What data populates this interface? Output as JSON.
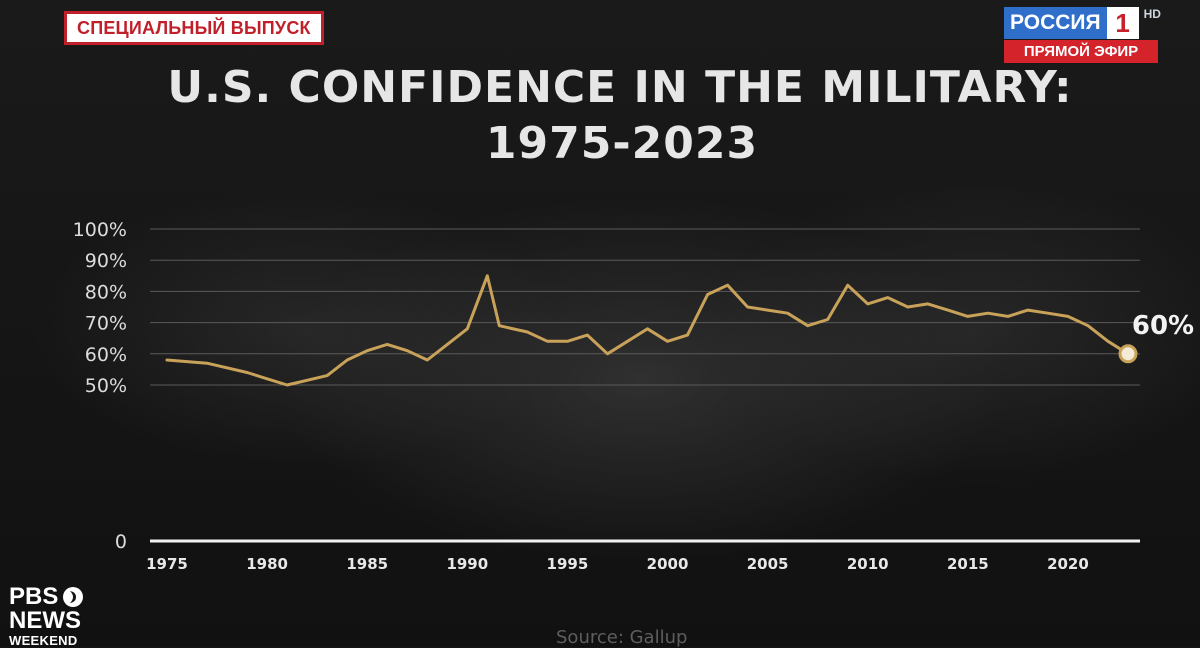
{
  "banner": {
    "special_edition": "СПЕЦИАЛЬНЫЙ ВЫПУСК"
  },
  "channel": {
    "name": "РОССИЯ",
    "number": "1",
    "hd": "HD",
    "live": "ПРЯМОЙ ЭФИР"
  },
  "broadcaster": {
    "line1": "PBS",
    "line2": "NEWS",
    "line3": "WEEKEND"
  },
  "source": "Source: Gallup",
  "colors": {
    "line": "#c9a25a",
    "text": "#e6e6e6",
    "grid": "#5a5a5a",
    "badge_red": "#c0202a",
    "channel_blue": "#2f6fc9"
  },
  "chart_data": {
    "type": "line",
    "title": [
      "U.S. CONFIDENCE IN THE MILITARY:",
      "1975-2023"
    ],
    "xlabel": "",
    "ylabel": "",
    "xlim": [
      1975,
      2023
    ],
    "ylim": [
      0,
      100
    ],
    "x_ticks": [
      1975,
      1980,
      1985,
      1990,
      1995,
      2000,
      2005,
      2010,
      2015,
      2020
    ],
    "y_ticks": [
      {
        "value": 0,
        "label": "0"
      },
      {
        "value": 50,
        "label": "50%"
      },
      {
        "value": 60,
        "label": "60%"
      },
      {
        "value": 70,
        "label": "70%"
      },
      {
        "value": 80,
        "label": "80%"
      },
      {
        "value": 90,
        "label": "90%"
      },
      {
        "value": 100,
        "label": "100%"
      }
    ],
    "grid": true,
    "series": [
      {
        "points": [
          [
            1975,
            58
          ],
          [
            1977,
            57
          ],
          [
            1979,
            54
          ],
          [
            1980,
            52
          ],
          [
            1981,
            50
          ],
          [
            1983,
            53
          ],
          [
            1984,
            58
          ],
          [
            1985,
            61
          ],
          [
            1986,
            63
          ],
          [
            1987,
            61
          ],
          [
            1988,
            58
          ],
          [
            1989,
            63
          ],
          [
            1990,
            68
          ],
          [
            1991,
            85
          ],
          [
            1991.6,
            69
          ],
          [
            1993,
            67
          ],
          [
            1994,
            64
          ],
          [
            1995,
            64
          ],
          [
            1996,
            66
          ],
          [
            1997,
            60
          ],
          [
            1998,
            64
          ],
          [
            1999,
            68
          ],
          [
            2000,
            64
          ],
          [
            2001,
            66
          ],
          [
            2002,
            79
          ],
          [
            2003,
            82
          ],
          [
            2004,
            75
          ],
          [
            2005,
            74
          ],
          [
            2006,
            73
          ],
          [
            2007,
            69
          ],
          [
            2008,
            71
          ],
          [
            2009,
            82
          ],
          [
            2010,
            76
          ],
          [
            2011,
            78
          ],
          [
            2012,
            75
          ],
          [
            2013,
            76
          ],
          [
            2014,
            74
          ],
          [
            2015,
            72
          ],
          [
            2016,
            73
          ],
          [
            2017,
            72
          ],
          [
            2018,
            74
          ],
          [
            2019,
            73
          ],
          [
            2020,
            72
          ],
          [
            2021,
            69
          ],
          [
            2022,
            64
          ],
          [
            2023,
            60
          ]
        ]
      }
    ],
    "end_label": "60%"
  }
}
